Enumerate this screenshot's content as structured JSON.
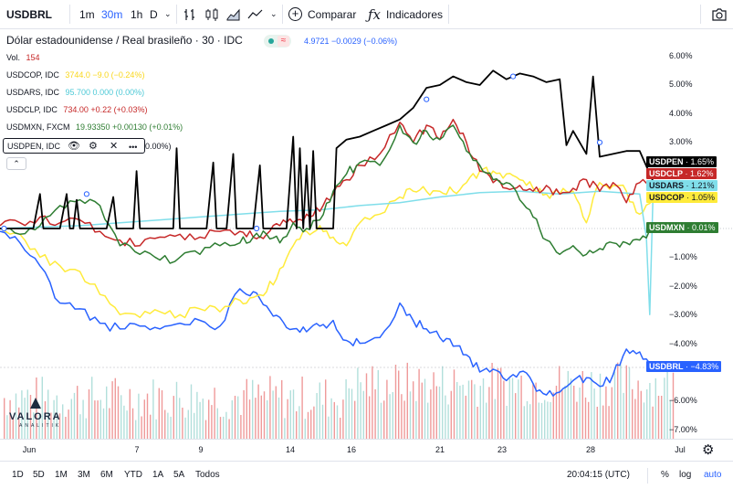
{
  "toolbar": {
    "symbol": "USDBRL",
    "intervals": [
      "1m",
      "30m",
      "1h",
      "D"
    ],
    "active_interval": "30m",
    "compare_label": "Comparar",
    "indicators_label": "Indicadores"
  },
  "legend": {
    "title": "Dólar estadounidense / Real brasileño · 30 · IDC",
    "price": "4.9721 −0.0029 (−0.06%)",
    "volume_label": "Vol.",
    "volume_value": "154",
    "comparisons": [
      {
        "name": "USDCOP, IDC",
        "values": "3744.0 −9.0 (−0.24%)",
        "color": "#ffeb3b"
      },
      {
        "name": "USDARS, IDC",
        "values": "95.700 0.000 (0.00%)",
        "color": "#80deea"
      },
      {
        "name": "USDCLP, IDC",
        "values": "734.00 +0.22 (+0.03%)",
        "color": "#c62828"
      },
      {
        "name": "USDMXN, FXCM",
        "values": "19.93350 +0.00130 (+0.01%)",
        "color": "#2e7d32"
      }
    ],
    "pen_name": "USDPEN, IDC",
    "pen_tail": "0.00%)"
  },
  "price_scale": {
    "ticks": [
      "6.00%",
      "5.00%",
      "4.00%",
      "3.00%",
      "−1.00%",
      "−2.00%",
      "−3.00%",
      "−4.00%",
      "−6.00%",
      "−7.00%"
    ],
    "labels": [
      {
        "name": "USDPEN",
        "value": "1.65%",
        "color": "#000000"
      },
      {
        "name": "USDCLP",
        "value": "1.62%",
        "color": "#c62828"
      },
      {
        "name": "USDARS",
        "value": "1.21%",
        "color": "#80deea"
      },
      {
        "name": "USDCOP",
        "value": "1.05%",
        "color": "#ffeb3b"
      },
      {
        "name": "USDMXN",
        "value": "0.01%",
        "color": "#2e7d32"
      },
      {
        "name": "USDBRL",
        "value": "−4.83%",
        "color": "#2962ff"
      }
    ]
  },
  "time_axis": [
    "Jun",
    "7",
    "9",
    "14",
    "16",
    "21",
    "23",
    "28",
    "Jul"
  ],
  "bottom": {
    "ranges": [
      "1D",
      "5D",
      "1M",
      "3M",
      "6M",
      "YTD",
      "1A",
      "5A",
      "Todos"
    ],
    "clock": "20:04:15 (UTC)",
    "percent": "%",
    "log": "log",
    "auto": "auto"
  },
  "watermark": {
    "name": "VALORA",
    "sub": "ANALITIK"
  },
  "chart_data": {
    "type": "line",
    "x_ticks": [
      "Jun",
      "7",
      "9",
      "14",
      "16",
      "21",
      "23",
      "28",
      "Jul"
    ],
    "ylabel": "%",
    "ylim": [
      -7.3,
      6.3
    ],
    "series": [
      {
        "name": "USDBRL",
        "color": "#2962ff",
        "points": [
          [
            0,
            -0.1
          ],
          [
            3,
            -0.5
          ],
          [
            6,
            -1.3
          ],
          [
            9,
            -2.6
          ],
          [
            12,
            -2.8
          ],
          [
            15,
            -3.3
          ],
          [
            18,
            -3.5
          ],
          [
            21,
            -3.4
          ],
          [
            24,
            -3.5
          ],
          [
            27,
            -3.3
          ],
          [
            30,
            -3.2
          ],
          [
            33,
            -3.4
          ],
          [
            36,
            -2.1
          ],
          [
            38,
            -2.2
          ],
          [
            40,
            -2.7
          ],
          [
            42,
            -3.1
          ],
          [
            44,
            -3.5
          ],
          [
            46,
            -3.6
          ],
          [
            48,
            -3.4
          ],
          [
            50,
            -3.2
          ],
          [
            52,
            -3.9
          ],
          [
            54,
            -4.0
          ],
          [
            57,
            -3.8
          ],
          [
            60,
            -2.6
          ],
          [
            62,
            -3.2
          ],
          [
            64,
            -3.5
          ],
          [
            66,
            -3.8
          ],
          [
            68,
            -4.1
          ],
          [
            70,
            -4.4
          ],
          [
            72,
            -5.0
          ],
          [
            74,
            -4.9
          ],
          [
            76,
            -5.3
          ],
          [
            78,
            -5.0
          ],
          [
            80,
            -5.4
          ],
          [
            82,
            -5.8
          ],
          [
            84,
            -5.7
          ],
          [
            86,
            -5.3
          ],
          [
            88,
            -5.2
          ],
          [
            90,
            -5.5
          ],
          [
            92,
            -5.1
          ],
          [
            94,
            -4.2
          ],
          [
            96,
            -4.3
          ],
          [
            98,
            -4.8
          ]
        ]
      },
      {
        "name": "USDCOP",
        "color": "#ffeb3b",
        "points": [
          [
            0,
            0.0
          ],
          [
            3,
            -0.2
          ],
          [
            6,
            -1.0
          ],
          [
            9,
            -1.3
          ],
          [
            12,
            -1.5
          ],
          [
            15,
            -2.3
          ],
          [
            18,
            -3.0
          ],
          [
            21,
            -3.1
          ],
          [
            24,
            -2.9
          ],
          [
            27,
            -3.0
          ],
          [
            30,
            -2.8
          ],
          [
            33,
            -2.9
          ],
          [
            36,
            -2.5
          ],
          [
            38,
            -2.4
          ],
          [
            40,
            -2.2
          ],
          [
            42,
            -1.4
          ],
          [
            44,
            -0.6
          ],
          [
            46,
            -0.1
          ],
          [
            48,
            0.1
          ],
          [
            50,
            -0.3
          ],
          [
            52,
            -0.6
          ],
          [
            54,
            0.2
          ],
          [
            57,
            0.5
          ],
          [
            60,
            1.1
          ],
          [
            62,
            1.3
          ],
          [
            64,
            1.3
          ],
          [
            66,
            1.3
          ],
          [
            68,
            1.3
          ],
          [
            70,
            1.6
          ],
          [
            72,
            2.0
          ],
          [
            74,
            2.0
          ],
          [
            76,
            1.9
          ],
          [
            78,
            1.7
          ],
          [
            80,
            1.4
          ],
          [
            82,
            1.2
          ],
          [
            84,
            1.2
          ],
          [
            86,
            1.3
          ],
          [
            88,
            0.2
          ],
          [
            90,
            1.6
          ],
          [
            92,
            1.5
          ],
          [
            94,
            1.3
          ],
          [
            96,
            0.5
          ],
          [
            98,
            1.05
          ]
        ]
      },
      {
        "name": "USDARS",
        "color": "#80deea",
        "points": [
          [
            0,
            0.0
          ],
          [
            6,
            0.05
          ],
          [
            12,
            0.1
          ],
          [
            18,
            0.2
          ],
          [
            24,
            0.3
          ],
          [
            30,
            0.4
          ],
          [
            36,
            0.5
          ],
          [
            42,
            0.6
          ],
          [
            48,
            0.65
          ],
          [
            54,
            0.8
          ],
          [
            60,
            0.9
          ],
          [
            66,
            1.1
          ],
          [
            72,
            1.25
          ],
          [
            78,
            1.3
          ],
          [
            84,
            1.2
          ],
          [
            90,
            1.3
          ],
          [
            96,
            1.2
          ],
          [
            97,
            -0.3
          ],
          [
            97.5,
            -3.0
          ],
          [
            98,
            1.21
          ]
        ]
      },
      {
        "name": "USDCLP",
        "color": "#c62828",
        "points": [
          [
            0,
            0.1
          ],
          [
            3,
            0.2
          ],
          [
            6,
            0.4
          ],
          [
            9,
            0.2
          ],
          [
            12,
            0.3
          ],
          [
            15,
            -0.1
          ],
          [
            18,
            -0.4
          ],
          [
            21,
            -0.6
          ],
          [
            24,
            -0.3
          ],
          [
            27,
            -0.2
          ],
          [
            30,
            -0.3
          ],
          [
            33,
            -0.1
          ],
          [
            36,
            -0.1
          ],
          [
            38,
            -0.3
          ],
          [
            40,
            -0.2
          ],
          [
            42,
            0.1
          ],
          [
            44,
            0.2
          ],
          [
            46,
            0.5
          ],
          [
            48,
            0.6
          ],
          [
            50,
            1.2
          ],
          [
            52,
            1.7
          ],
          [
            54,
            2.2
          ],
          [
            57,
            2.6
          ],
          [
            60,
            3.7
          ],
          [
            62,
            3.0
          ],
          [
            64,
            3.6
          ],
          [
            66,
            3.1
          ],
          [
            68,
            3.8
          ],
          [
            70,
            3.0
          ],
          [
            72,
            2.0
          ],
          [
            74,
            1.6
          ],
          [
            76,
            1.4
          ],
          [
            78,
            1.5
          ],
          [
            80,
            1.3
          ],
          [
            82,
            1.5
          ],
          [
            84,
            1.2
          ],
          [
            86,
            1.4
          ],
          [
            88,
            1.7
          ],
          [
            90,
            1.3
          ],
          [
            92,
            1.6
          ],
          [
            94,
            0.9
          ],
          [
            96,
            1.6
          ],
          [
            98,
            1.62
          ]
        ]
      },
      {
        "name": "USDMXN",
        "color": "#2e7d32",
        "points": [
          [
            0,
            0.0
          ],
          [
            3,
            -0.2
          ],
          [
            6,
            0.1
          ],
          [
            9,
            0.8
          ],
          [
            12,
            1.0
          ],
          [
            15,
            0.8
          ],
          [
            18,
            -0.6
          ],
          [
            21,
            -0.9
          ],
          [
            24,
            -1.1
          ],
          [
            27,
            -1.0
          ],
          [
            30,
            -0.9
          ],
          [
            33,
            -0.6
          ],
          [
            36,
            -0.5
          ],
          [
            38,
            -0.3
          ],
          [
            40,
            -0.2
          ],
          [
            42,
            -0.5
          ],
          [
            44,
            0.2
          ],
          [
            46,
            0.0
          ],
          [
            48,
            0.3
          ],
          [
            50,
            1.3
          ],
          [
            52,
            1.9
          ],
          [
            54,
            2.3
          ],
          [
            57,
            2.2
          ],
          [
            60,
            3.6
          ],
          [
            62,
            3.0
          ],
          [
            64,
            3.4
          ],
          [
            66,
            3.1
          ],
          [
            68,
            3.6
          ],
          [
            70,
            2.7
          ],
          [
            72,
            2.2
          ],
          [
            74,
            1.7
          ],
          [
            76,
            1.6
          ],
          [
            78,
            1.0
          ],
          [
            80,
            0.4
          ],
          [
            82,
            -0.4
          ],
          [
            84,
            -0.9
          ],
          [
            86,
            -0.6
          ],
          [
            88,
            -0.9
          ],
          [
            90,
            -0.7
          ],
          [
            92,
            -0.5
          ],
          [
            94,
            -0.5
          ],
          [
            96,
            -0.4
          ],
          [
            98,
            0.01
          ]
        ]
      },
      {
        "name": "USDPEN",
        "color": "#000000",
        "points": [
          [
            0,
            0.0
          ],
          [
            5,
            0.0
          ],
          [
            6,
            1.2
          ],
          [
            6.5,
            0.0
          ],
          [
            9,
            0.0
          ],
          [
            10,
            1.2
          ],
          [
            10.5,
            0.0
          ],
          [
            11,
            0.0
          ],
          [
            11.5,
            1.0
          ],
          [
            12,
            0.0
          ],
          [
            16,
            0.0
          ],
          [
            17,
            1.1
          ],
          [
            17.5,
            0.0
          ],
          [
            20,
            0.0
          ],
          [
            20.5,
            2.0
          ],
          [
            21,
            0.0
          ],
          [
            26,
            0.0
          ],
          [
            26.5,
            2.8
          ],
          [
            27,
            0.0
          ],
          [
            31,
            0.0
          ],
          [
            32,
            2.3
          ],
          [
            32.5,
            0.0
          ],
          [
            34,
            0.0
          ],
          [
            35,
            2.6
          ],
          [
            35.5,
            0.0
          ],
          [
            38,
            0.0
          ],
          [
            39,
            2.2
          ],
          [
            39.5,
            0.0
          ],
          [
            43,
            0.0
          ],
          [
            44,
            3.2
          ],
          [
            44.5,
            0.0
          ],
          [
            45,
            2.8
          ],
          [
            45.5,
            0.0
          ],
          [
            46,
            2.2
          ],
          [
            46.5,
            0.0
          ],
          [
            47,
            2.7
          ],
          [
            47.5,
            0.0
          ],
          [
            50,
            0.0
          ],
          [
            50.5,
            2.8
          ],
          [
            52,
            3.1
          ],
          [
            54,
            3.2
          ],
          [
            56,
            3.4
          ],
          [
            58,
            3.6
          ],
          [
            60,
            3.8
          ],
          [
            62,
            4.2
          ],
          [
            64,
            4.9
          ],
          [
            66,
            5.0
          ],
          [
            68,
            5.3
          ],
          [
            70,
            5.1
          ],
          [
            72,
            5.0
          ],
          [
            74,
            5.5
          ],
          [
            76,
            5.2
          ],
          [
            78,
            5.4
          ],
          [
            80,
            5.3
          ],
          [
            82,
            5.1
          ],
          [
            84,
            5.2
          ],
          [
            85,
            2.9
          ],
          [
            86,
            3.4
          ],
          [
            88,
            2.6
          ],
          [
            89,
            5.3
          ],
          [
            90,
            2.5
          ],
          [
            92,
            2.6
          ],
          [
            94,
            2.7
          ],
          [
            96,
            2.7
          ],
          [
            98,
            1.65
          ]
        ]
      }
    ],
    "volume": {
      "color_up": "#ef9a9a",
      "color_down": "#b2dfdb"
    }
  }
}
